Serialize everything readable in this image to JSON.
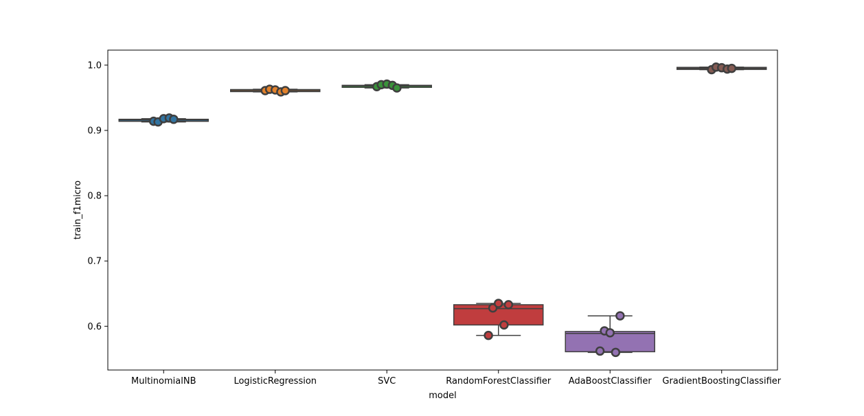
{
  "chart_data": {
    "type": "box",
    "xlabel": "model",
    "ylabel": "train_f1micro",
    "ylim": [
      0.533,
      1.023
    ],
    "yticks": [
      0.6,
      0.7,
      0.8,
      0.9,
      1.0
    ],
    "grid": false,
    "categories": [
      "MultinomialNB",
      "LogisticRegression",
      "SVC",
      "RandomForestClassifier",
      "AdaBoostClassifier",
      "GradientBoostingClassifier"
    ],
    "boxes": [
      {
        "category": "MultinomialNB",
        "color": "#3274a1",
        "whisker_low": 0.913,
        "q1": 0.914,
        "median": 0.916,
        "q3": 0.917,
        "whisker_high": 0.918,
        "points": [
          0.914,
          0.913,
          0.918,
          0.919,
          0.917
        ]
      },
      {
        "category": "LogisticRegression",
        "color": "#e1812c",
        "whisker_low": 0.959,
        "q1": 0.96,
        "median": 0.961,
        "q3": 0.962,
        "whisker_high": 0.963,
        "points": [
          0.961,
          0.963,
          0.962,
          0.959,
          0.961
        ]
      },
      {
        "category": "SVC",
        "color": "#3a923a",
        "whisker_low": 0.965,
        "q1": 0.966,
        "median": 0.968,
        "q3": 0.969,
        "whisker_high": 0.97,
        "points": [
          0.967,
          0.97,
          0.971,
          0.969,
          0.965
        ]
      },
      {
        "category": "RandomForestClassifier",
        "color": "#c03d3e",
        "whisker_low": 0.586,
        "q1": 0.602,
        "median": 0.627,
        "q3": 0.633,
        "whisker_high": 0.635,
        "points": [
          0.586,
          0.628,
          0.635,
          0.602,
          0.633
        ]
      },
      {
        "category": "AdaBoostClassifier",
        "color": "#9372b2",
        "whisker_low": 0.56,
        "q1": 0.561,
        "median": 0.589,
        "q3": 0.592,
        "whisker_high": 0.616,
        "points": [
          0.562,
          0.593,
          0.59,
          0.56,
          0.616
        ]
      },
      {
        "category": "GradientBoostingClassifier",
        "color": "#845b53",
        "whisker_low": 0.993,
        "q1": 0.994,
        "median": 0.995,
        "q3": 0.996,
        "whisker_high": 0.997,
        "points": [
          0.993,
          0.997,
          0.996,
          0.994,
          0.995
        ]
      }
    ]
  }
}
